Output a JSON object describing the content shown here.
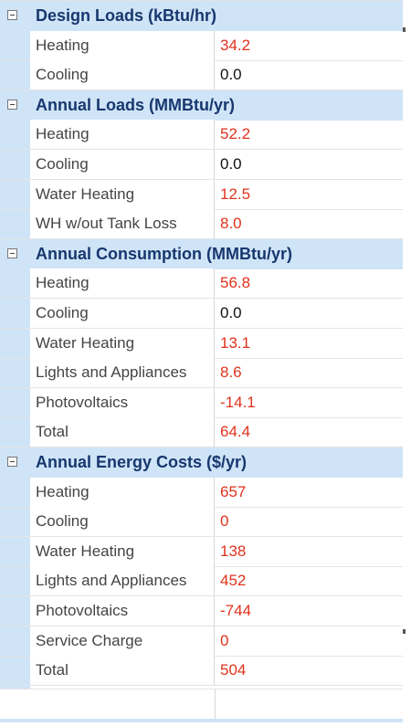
{
  "categories": [
    {
      "title": "Design Loads (kBtu/hr)",
      "rows": [
        {
          "name": "Heating",
          "value": "34.2",
          "color": "red"
        },
        {
          "name": "Cooling",
          "value": "0.0",
          "color": "black"
        }
      ]
    },
    {
      "title": "Annual Loads (MMBtu/yr)",
      "rows": [
        {
          "name": "Heating",
          "value": "52.2",
          "color": "red"
        },
        {
          "name": "Cooling",
          "value": "0.0",
          "color": "black"
        },
        {
          "name": "Water Heating",
          "value": "12.5",
          "color": "red"
        },
        {
          "name": "WH w/out Tank Loss",
          "value": "8.0",
          "color": "red"
        }
      ]
    },
    {
      "title": "Annual Consumption (MMBtu/yr)",
      "rows": [
        {
          "name": "Heating",
          "value": "56.8",
          "color": "red"
        },
        {
          "name": "Cooling",
          "value": "0.0",
          "color": "black"
        },
        {
          "name": "Water Heating",
          "value": "13.1",
          "color": "red"
        },
        {
          "name": "Lights and Appliances",
          "value": "8.6",
          "color": "red"
        },
        {
          "name": "Photovoltaics",
          "value": "-14.1",
          "color": "red"
        },
        {
          "name": "Total",
          "value": "64.4",
          "color": "red"
        }
      ]
    },
    {
      "title": "Annual Energy Costs ($/yr)",
      "rows": [
        {
          "name": "Heating",
          "value": "657",
          "color": "red"
        },
        {
          "name": "Cooling",
          "value": "0",
          "color": "red"
        },
        {
          "name": "Water Heating",
          "value": "138",
          "color": "red"
        },
        {
          "name": "Lights and Appliances",
          "value": "452",
          "color": "red"
        },
        {
          "name": "Photovoltaics",
          "value": "-744",
          "color": "red"
        },
        {
          "name": "Service Charge",
          "value": "0",
          "color": "red"
        },
        {
          "name": "Total",
          "value": "504",
          "color": "red"
        }
      ]
    }
  ],
  "icons": {
    "expander": "collapse-minus-icon"
  },
  "colors": {
    "category_bg": "#cfe4f7",
    "category_text": "#17376e",
    "value_red": "#e0321c",
    "value_black": "#111111"
  }
}
